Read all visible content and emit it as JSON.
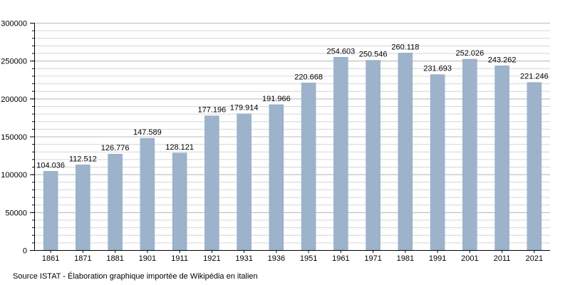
{
  "chart_data": {
    "type": "bar",
    "categories": [
      "1861",
      "1871",
      "1881",
      "1901",
      "1911",
      "1921",
      "1931",
      "1936",
      "1951",
      "1961",
      "1971",
      "1981",
      "1991",
      "2001",
      "2011",
      "2021"
    ],
    "values": [
      104036,
      112512,
      126776,
      147589,
      128121,
      177196,
      179914,
      191966,
      220668,
      254603,
      250546,
      260118,
      231693,
      252026,
      243262,
      221246
    ],
    "value_labels": [
      "104.036",
      "112.512",
      "126.776",
      "147.589",
      "128.121",
      "177.196",
      "179.914",
      "191.966",
      "220.668",
      "254.603",
      "250.546",
      "260.118",
      "231.693",
      "252.026",
      "243.262",
      "221.246"
    ],
    "ylim": [
      0,
      300000
    ],
    "yticks": [
      "0",
      "50000",
      "100000",
      "150000",
      "200000",
      "250000",
      "300000"
    ],
    "ytick_values": [
      0,
      50000,
      100000,
      150000,
      200000,
      250000,
      300000
    ],
    "minor_step": 10000,
    "grid": true,
    "bar_color": "#9db3cb",
    "bar_edge_color": "#8aa3bf",
    "grid_color": "#d6d6d6"
  },
  "source_note": "Source ISTAT - Élaboration graphique importée de Wikipédia en italien"
}
